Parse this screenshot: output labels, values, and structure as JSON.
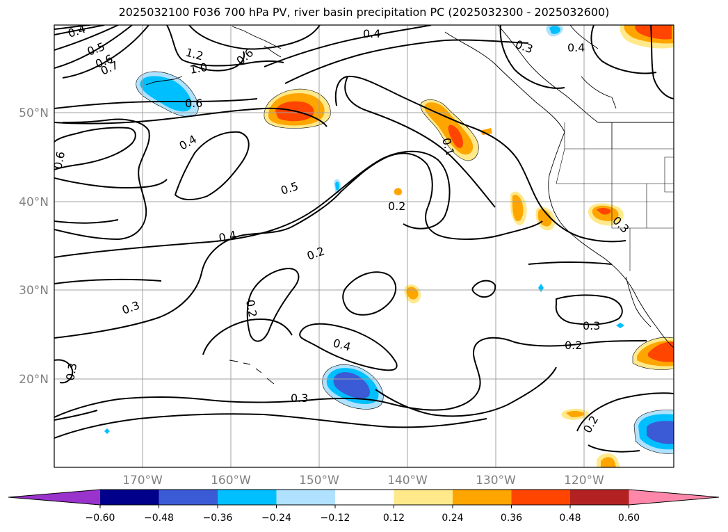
{
  "title": "2025032100 F036 700 hPa PV, river basin precipitation PC (2025032300 - 2025032600)",
  "axes": {
    "lat_labels": [
      "50°N",
      "40°N",
      "30°N",
      "20°N"
    ],
    "lon_labels": [
      "170°W",
      "160°W",
      "150°W",
      "140°W",
      "130°W",
      "120°W"
    ]
  },
  "contour_labels": [
    "0.4",
    "0.5",
    "0.6",
    "0.7",
    "1.2",
    "1.0",
    "0.6",
    "0.6",
    "0.4",
    "0.6",
    "0.4",
    "0.3",
    "0.4",
    "0.5",
    "0.2",
    "0.4",
    "0.2",
    "0.2",
    "0.3",
    "0.3",
    "0.4",
    "0.3",
    "0.3",
    "0.2",
    "0.2",
    "0.3",
    "0.1"
  ],
  "colorbar": {
    "ticks": [
      "−0.60",
      "−0.48",
      "−0.36",
      "−0.24",
      "−0.12",
      "0.12",
      "0.24",
      "0.36",
      "0.48",
      "0.60"
    ],
    "colors": [
      "#9933cc",
      "#00008b",
      "#3b5bd6",
      "#00bfff",
      "#b0e2ff",
      "#ffffff",
      "#ffe98a",
      "#ffa500",
      "#ff4500",
      "#b22222",
      "#ff88aa"
    ]
  }
}
